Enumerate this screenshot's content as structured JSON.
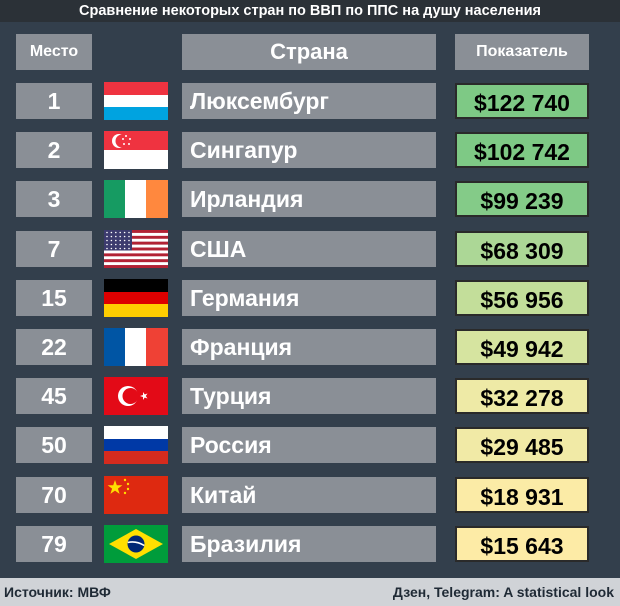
{
  "title": "Сравнение некоторых стран по ВВП по ППС на душу населения",
  "chart_data": {
    "type": "table",
    "columns": [
      "Место",
      "Страна",
      "Показатель"
    ],
    "rows": [
      {
        "rank": "1",
        "country": "Люксембург",
        "value_label": "$122 740",
        "value": 122740,
        "flag": "luxembourg-flag-icon",
        "value_color": "#7ec985"
      },
      {
        "rank": "2",
        "country": "Сингапур",
        "value_label": "$102 742",
        "value": 102742,
        "flag": "singapore-flag-icon",
        "value_color": "#7ec985"
      },
      {
        "rank": "3",
        "country": "Ирландия",
        "value_label": "$99 239",
        "value": 99239,
        "flag": "ireland-flag-icon",
        "value_color": "#84cb88"
      },
      {
        "rank": "7",
        "country": "США",
        "value_label": "$68 309",
        "value": 68309,
        "flag": "usa-flag-icon",
        "value_color": "#acd796"
      },
      {
        "rank": "15",
        "country": "Германия",
        "value_label": "$56 956",
        "value": 56956,
        "flag": "germany-flag-icon",
        "value_color": "#c3de9a"
      },
      {
        "rank": "22",
        "country": "Франция",
        "value_label": "$49 942",
        "value": 49942,
        "flag": "france-flag-icon",
        "value_color": "#d6e4a0"
      },
      {
        "rank": "45",
        "country": "Турция",
        "value_label": "$32 278",
        "value": 32278,
        "flag": "turkey-flag-icon",
        "value_color": "#eeeaa6"
      },
      {
        "rank": "50",
        "country": "Россия",
        "value_label": "$29 485",
        "value": 29485,
        "flag": "russia-flag-icon",
        "value_color": "#f1eaa6"
      },
      {
        "rank": "70",
        "country": "Китай",
        "value_label": "$18 931",
        "value": 18931,
        "flag": "china-flag-icon",
        "value_color": "#fbeba6"
      },
      {
        "rank": "79",
        "country": "Бразилия",
        "value_label": "$15 643",
        "value": 15643,
        "flag": "brazil-flag-icon",
        "value_color": "#fdeba6"
      }
    ]
  },
  "footer": {
    "source": "Источник: МВФ",
    "credit": "Дзен, Telegram: A statistical look"
  }
}
